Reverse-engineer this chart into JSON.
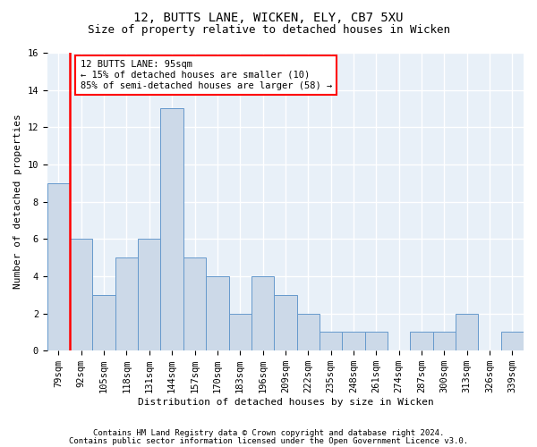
{
  "title1": "12, BUTTS LANE, WICKEN, ELY, CB7 5XU",
  "title2": "Size of property relative to detached houses in Wicken",
  "xlabel": "Distribution of detached houses by size in Wicken",
  "ylabel": "Number of detached properties",
  "categories": [
    "79sqm",
    "92sqm",
    "105sqm",
    "118sqm",
    "131sqm",
    "144sqm",
    "157sqm",
    "170sqm",
    "183sqm",
    "196sqm",
    "209sqm",
    "222sqm",
    "235sqm",
    "248sqm",
    "261sqm",
    "274sqm",
    "287sqm",
    "300sqm",
    "313sqm",
    "326sqm",
    "339sqm"
  ],
  "values": [
    9,
    6,
    3,
    5,
    6,
    13,
    5,
    4,
    2,
    4,
    3,
    2,
    1,
    1,
    1,
    0,
    1,
    1,
    2,
    0,
    1
  ],
  "bar_color": "#ccd9e8",
  "bar_edge_color": "#6699cc",
  "vline_index": 1,
  "annotation_text": "12 BUTTS LANE: 95sqm\n← 15% of detached houses are smaller (10)\n85% of semi-detached houses are larger (58) →",
  "annotation_box_facecolor": "white",
  "annotation_box_edgecolor": "red",
  "ylim": [
    0,
    16
  ],
  "yticks": [
    0,
    2,
    4,
    6,
    8,
    10,
    12,
    14,
    16
  ],
  "footer1": "Contains HM Land Registry data © Crown copyright and database right 2024.",
  "footer2": "Contains public sector information licensed under the Open Government Licence v3.0.",
  "fig_facecolor": "#ffffff",
  "plot_facecolor": "#e8f0f8",
  "grid_color": "#ffffff",
  "title1_fontsize": 10,
  "title2_fontsize": 9,
  "ylabel_fontsize": 8,
  "xlabel_fontsize": 8,
  "tick_fontsize": 7.5,
  "footer_fontsize": 6.5
}
